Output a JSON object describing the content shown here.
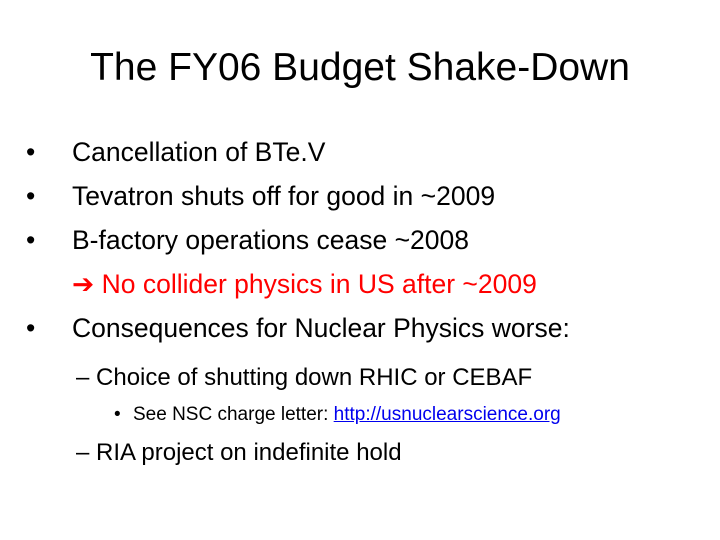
{
  "slide": {
    "title": "The FY06 Budget Shake-Down",
    "bullet_glyph": "•",
    "dash_glyph": "–",
    "arrow_glyph": "➔",
    "items": [
      "Cancellation of BTe.V",
      "Tevatron shuts off for good in ~2009",
      "B-factory operations cease ~2008",
      "No collider physics in US after ~2009",
      "Consequences for Nuclear Physics worse:"
    ],
    "sub_items": [
      "Choice of shutting down RHIC or CEBAF",
      "RIA project on indefinite hold"
    ],
    "sub_sub_item": {
      "prefix": "See NSC charge letter: ",
      "link": "http://usnuclearscience.org"
    },
    "colors": {
      "text": "#000000",
      "highlight": "#ff0000",
      "link": "#0000ee"
    }
  }
}
